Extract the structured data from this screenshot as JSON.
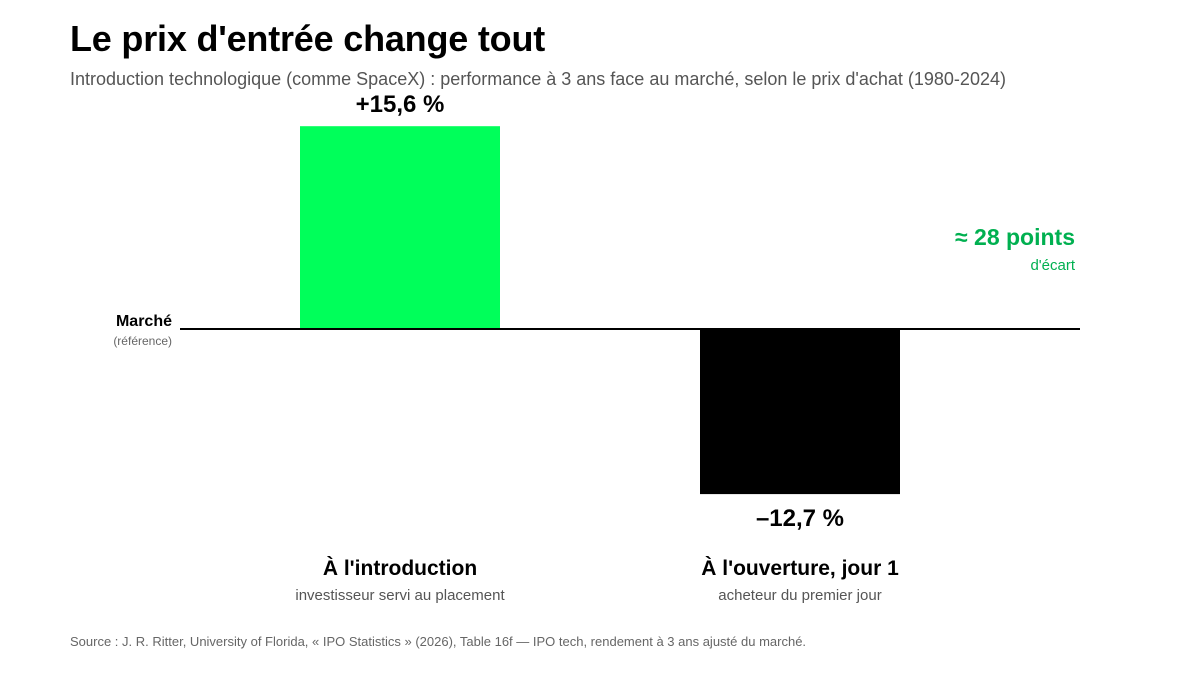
{
  "title": "Le prix d'entrée change tout",
  "subtitle": "Introduction technologique (comme SpaceX) : performance à 3 ans face au marché, selon le prix d'achat (1980-2024)",
  "source": "Source : J. R. Ritter, University of Florida, « IPO Statistics » (2026), Table 16f — IPO tech, rendement à 3 ans ajusté du marché.",
  "colors": {
    "positive": "#00ff5a",
    "negative": "#000000",
    "accent": "#00b050"
  },
  "chart_data": {
    "type": "bar",
    "baseline": {
      "label": "Marché",
      "sublabel": "(référence)",
      "value": 0
    },
    "categories": [
      "À l'introduction",
      "À l'ouverture, jour 1"
    ],
    "category_sublabels": [
      "investisseur servi au placement",
      "acheteur du premier jour"
    ],
    "values": [
      15.6,
      -12.7
    ],
    "value_labels": [
      "+15,6 %",
      "–12,7 %"
    ],
    "annotation": {
      "label": "≈ 28 points",
      "sublabel": "d'écart"
    },
    "ylim": [
      -12.7,
      15.6
    ],
    "grid": false
  }
}
